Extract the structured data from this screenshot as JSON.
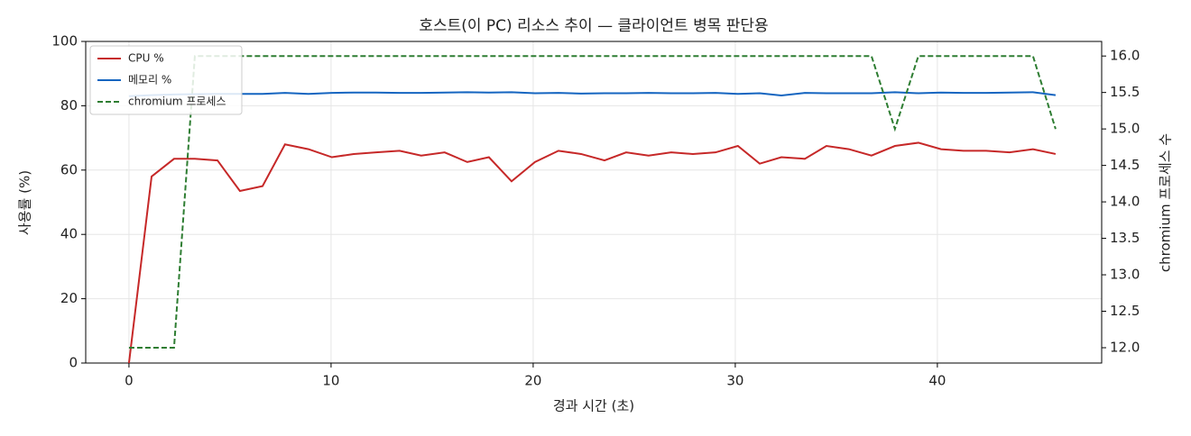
{
  "chart_data": {
    "type": "line",
    "title": "호스트(이 PC) 리소스 추이 — 클라이언트 병목 판단용",
    "x_label": "경과 시간 (초)",
    "y_label": "사용률 (%)",
    "y2_label": "chromium 프로세스 수",
    "x": [
      0,
      1.12,
      2.23,
      3.26,
      4.38,
      5.49,
      6.61,
      7.72,
      8.88,
      10.04,
      11.12,
      12.23,
      13.39,
      14.46,
      15.62,
      16.74,
      17.81,
      18.93,
      20.09,
      21.25,
      22.37,
      23.53,
      24.6,
      25.71,
      26.83,
      27.9,
      29.02,
      30.13,
      31.21,
      32.28,
      33.44,
      34.51,
      35.62,
      36.74,
      37.9,
      39.06,
      40.18,
      41.29,
      42.41,
      43.57,
      44.73,
      45.85
    ],
    "series": [
      {
        "name": "CPU %",
        "color": "#c62828",
        "dash": false,
        "values": [
          0,
          58,
          63.5,
          63.5,
          63,
          53.5,
          55,
          68,
          66.5,
          64,
          65,
          65.5,
          66,
          64.5,
          65.5,
          62.5,
          64,
          56.5,
          62.5,
          66,
          65,
          63,
          65.5,
          64.5,
          65.5,
          65,
          65.5,
          67.5,
          62,
          64,
          63.5,
          67.5,
          66.5,
          64.5,
          67.5,
          68.5,
          66.5,
          66,
          66,
          65.5,
          66.5,
          65
        ]
      },
      {
        "name": "메모리 %",
        "color": "#1565c0",
        "dash": false,
        "values": [
          83,
          83.3,
          83.5,
          83.6,
          83.7,
          83.7,
          83.7,
          84,
          83.7,
          84,
          84.1,
          84.1,
          84,
          84,
          84.1,
          84.2,
          84.1,
          84.2,
          83.9,
          84,
          83.8,
          83.9,
          83.9,
          84,
          83.9,
          83.9,
          84,
          83.7,
          83.9,
          83.2,
          84,
          83.9,
          83.9,
          83.9,
          84.2,
          83.9,
          84.1,
          84,
          84,
          84.1,
          84.2,
          83.3
        ]
      },
      {
        "name": "chromium 프로세스",
        "color": "#2e7d32",
        "dash": true,
        "axis": "y2",
        "values": [
          12,
          12,
          12,
          16,
          16,
          16,
          16,
          16,
          16,
          16,
          16,
          16,
          16,
          16,
          16,
          16,
          16,
          16,
          16,
          16,
          16,
          16,
          16,
          16,
          16,
          16,
          16,
          16,
          16,
          16,
          16,
          16,
          16,
          16,
          15,
          16,
          16,
          16,
          16,
          16,
          16,
          15
        ]
      }
    ],
    "xlim": [
      -2.14,
      48.13
    ],
    "xticks": [
      0,
      10,
      20,
      30,
      40
    ],
    "ylim": [
      0,
      100
    ],
    "yticks": [
      0,
      20,
      40,
      60,
      80,
      100
    ],
    "y2lim": [
      11.79,
      16.2
    ],
    "y2ticks": [
      {
        "value": 12,
        "label": "12.0"
      },
      {
        "value": 12.5,
        "label": "12.5"
      },
      {
        "value": 13,
        "label": "13.0"
      },
      {
        "value": 13.5,
        "label": "13.5"
      },
      {
        "value": 14,
        "label": "14.0"
      },
      {
        "value": 14.5,
        "label": "14.5"
      },
      {
        "value": 15,
        "label": "15.0"
      },
      {
        "value": 15.5,
        "label": "15.5"
      },
      {
        "value": 16,
        "label": "16.0"
      }
    ],
    "grid": true,
    "legend": "upper-left"
  }
}
